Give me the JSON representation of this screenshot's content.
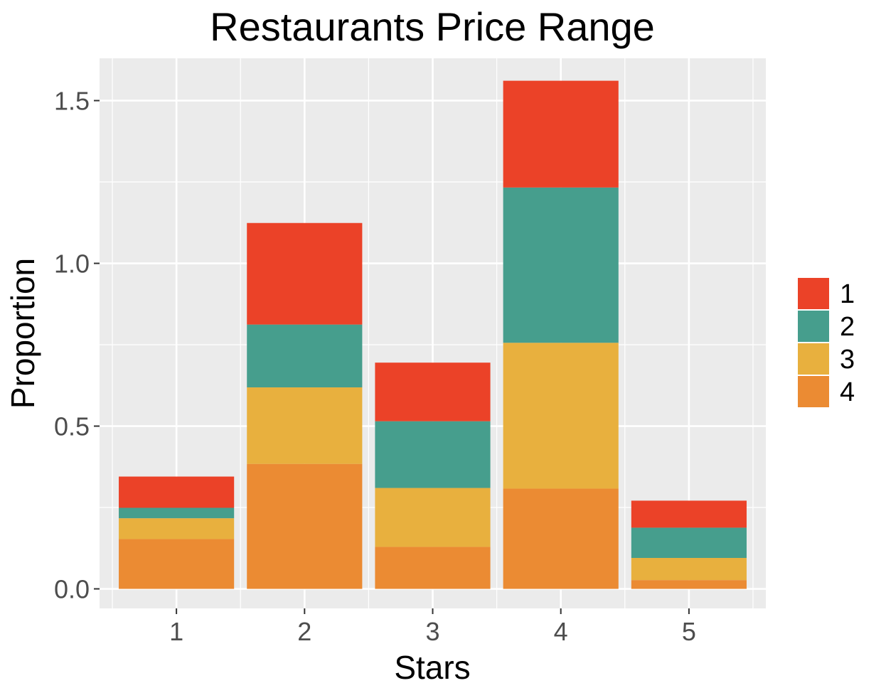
{
  "chart_data": {
    "type": "bar",
    "stacked": true,
    "title": "Restaurants Price Range",
    "xlabel": "Stars",
    "ylabel": "Proportion",
    "categories": [
      "1",
      "2",
      "3",
      "4",
      "5"
    ],
    "ylim": [
      -0.06,
      1.63
    ],
    "yticks": [
      0.0,
      0.5,
      1.0,
      1.5
    ],
    "ytick_labels": [
      "0.0",
      "0.5",
      "1.0",
      "1.5"
    ],
    "grid": true,
    "legend": {
      "position": "right",
      "entries": [
        "1",
        "2",
        "3",
        "4"
      ]
    },
    "series": [
      {
        "name": "4",
        "color": "#EB8B33",
        "values": [
          0.153,
          0.384,
          0.129,
          0.308,
          0.027
        ]
      },
      {
        "name": "3",
        "color": "#E8B03E",
        "values": [
          0.064,
          0.235,
          0.181,
          0.448,
          0.068
        ]
      },
      {
        "name": "2",
        "color": "#469E8D",
        "values": [
          0.032,
          0.193,
          0.205,
          0.477,
          0.093
        ]
      },
      {
        "name": "1",
        "color": "#EB4228",
        "values": [
          0.096,
          0.312,
          0.18,
          0.328,
          0.083
        ]
      }
    ]
  },
  "colors": {
    "panel_background": "#EBEBEB",
    "grid_line": "#FFFFFF",
    "tick_text": "#4D4D4D"
  }
}
